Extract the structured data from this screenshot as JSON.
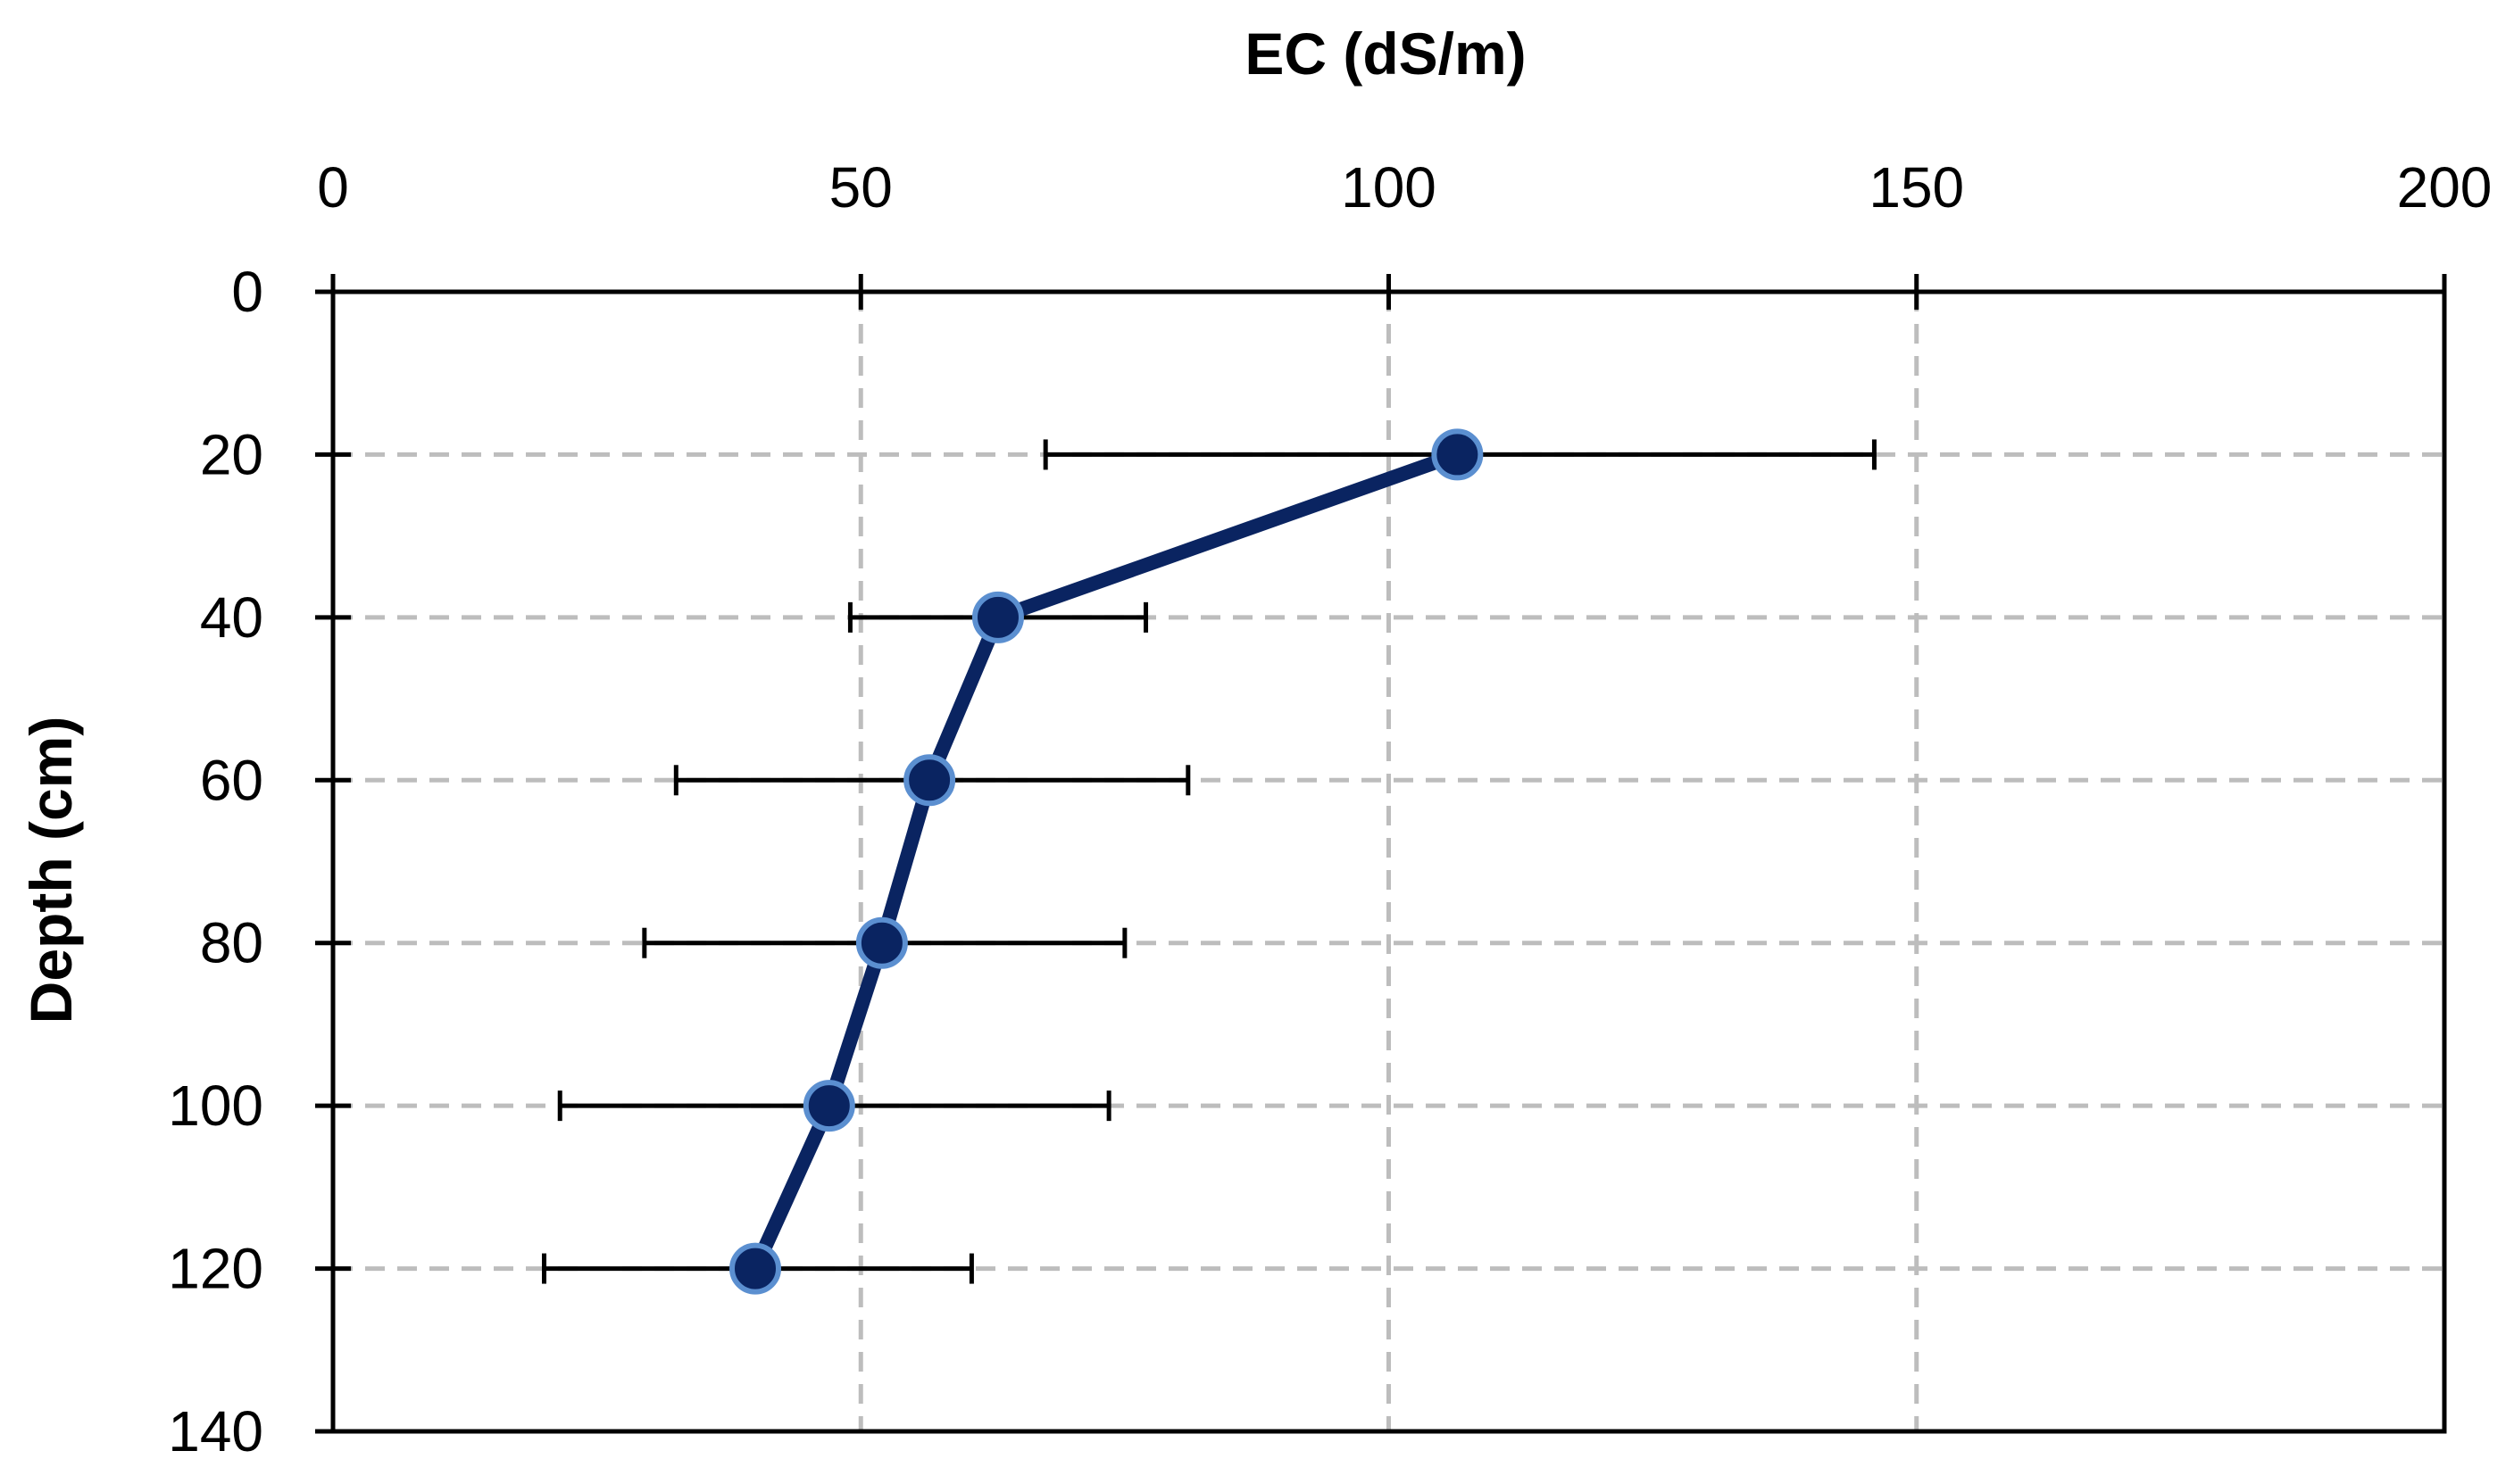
{
  "chart_data": {
    "type": "line",
    "title": "",
    "xlabel": "EC (dS/m)",
    "ylabel": "Depth (cm)",
    "x_axis_position": "top",
    "y_axis_inverted": true,
    "xlim": [
      0,
      200
    ],
    "ylim": [
      0,
      140
    ],
    "xticks": [
      0,
      50,
      100,
      150,
      200
    ],
    "yticks": [
      0,
      20,
      40,
      60,
      80,
      100,
      120,
      140
    ],
    "xtick_labels": [
      "0",
      "50",
      "100",
      "150",
      "200"
    ],
    "ytick_labels": [
      "0",
      "20",
      "40",
      "60",
      "80",
      "100",
      "120",
      "140"
    ],
    "grid": true,
    "series": [
      {
        "name": "EC",
        "color": "#0a2461",
        "marker_edge_color": "#5b8fd0",
        "points": [
          {
            "depth": 20,
            "ec": 106.5,
            "err_low": 67.5,
            "err_high": 146
          },
          {
            "depth": 40,
            "ec": 63,
            "err_low": 49,
            "err_high": 77
          },
          {
            "depth": 60,
            "ec": 56.5,
            "err_low": 32.5,
            "err_high": 81
          },
          {
            "depth": 80,
            "ec": 52,
            "err_low": 29.5,
            "err_high": 75
          },
          {
            "depth": 100,
            "ec": 47,
            "err_low": 21.5,
            "err_high": 73.5
          },
          {
            "depth": 120,
            "ec": 40,
            "err_low": 20,
            "err_high": 60.5
          }
        ]
      }
    ]
  }
}
